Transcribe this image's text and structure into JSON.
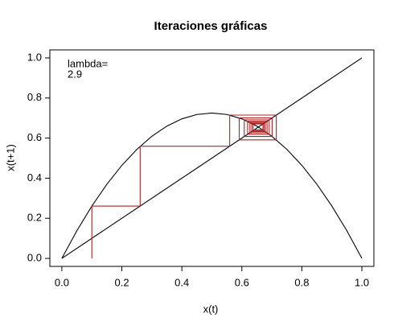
{
  "chart_data": {
    "type": "cobweb",
    "title": "Iteraciones gráficas",
    "x_label": "x(t)",
    "y_label": "x(t+1)",
    "annotation": "lambda=",
    "lambda": 2.9,
    "xlim": [
      -0.04,
      1.04
    ],
    "ylim": [
      -0.04,
      1.04
    ],
    "xticks": [
      {
        "value": 0,
        "label": "0.0"
      },
      0.2,
      0.4,
      0.6,
      0.8,
      {
        "value": 1,
        "label": "1.0"
      }
    ],
    "yticks": [
      {
        "value": 0,
        "label": "0.0"
      },
      0.2,
      0.4,
      0.6,
      0.8,
      {
        "value": 1,
        "label": "1.0"
      }
    ],
    "curve": {
      "color": "#000000",
      "x": [
        0,
        0.05,
        0.1,
        0.15,
        0.2,
        0.25,
        0.3,
        0.35,
        0.4,
        0.45,
        0.5,
        0.55,
        0.6,
        0.65,
        0.7,
        0.75,
        0.8,
        0.85,
        0.9,
        0.95,
        1
      ],
      "values": [
        0,
        0.13775,
        0.261,
        0.36975,
        0.464,
        0.54375,
        0.609,
        0.65975,
        0.696,
        0.71775,
        0.725,
        0.71775,
        0.696,
        0.65975,
        0.609,
        0.54375,
        0.464,
        0.36975,
        0.261,
        0.13775,
        0
      ]
    },
    "diagonal": {
      "color": "#000000",
      "x": [
        0,
        1
      ],
      "values": [
        0,
        1
      ]
    },
    "cobweb": {
      "color": "#b22222",
      "start": 0,
      "iterates": [
        0.1,
        0.261,
        0.55935,
        0.71479,
        0.59121,
        0.70087,
        0.60799,
        0.69118,
        0.619,
        0.68393,
        0.62689,
        0.67831,
        0.6328,
        0.67386,
        0.63734,
        0.6703,
        0.64089
      ]
    }
  }
}
